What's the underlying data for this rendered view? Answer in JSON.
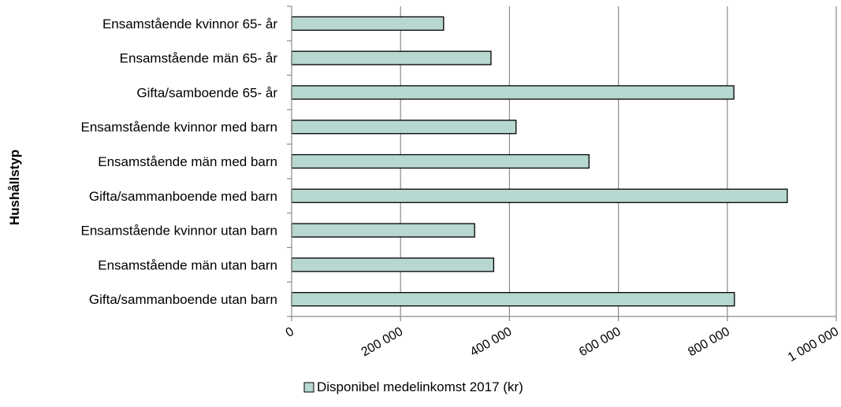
{
  "chart_data": {
    "type": "bar",
    "orientation": "horizontal",
    "categories": [
      "Ensamstående kvinnor 65- år",
      "Ensamstående män 65- år",
      "Gifta/samboende 65- år",
      "Ensamstående kvinnor med barn",
      "Ensamstående män med barn",
      "Gifta/sammanboende med barn",
      "Ensamstående kvinnor utan barn",
      "Ensamstående män utan barn",
      "Gifta/sammanboende utan barn"
    ],
    "series": [
      {
        "name": "Disponibel medelinkomst 2017 (kr)",
        "values": [
          279000,
          366000,
          812000,
          412000,
          546000,
          910000,
          336000,
          371000,
          813000
        ],
        "color": "#b7d7d1"
      }
    ],
    "ylabel": "Hushållstyp",
    "xlim": [
      0,
      1000000
    ],
    "xticks": [
      0,
      200000,
      400000,
      600000,
      800000,
      1000000
    ],
    "xtick_labels": [
      "0",
      "200 000",
      "400 000",
      "600 000",
      "800 000",
      "1 000 000"
    ],
    "grid": "vertical",
    "legend_position": "bottom"
  }
}
